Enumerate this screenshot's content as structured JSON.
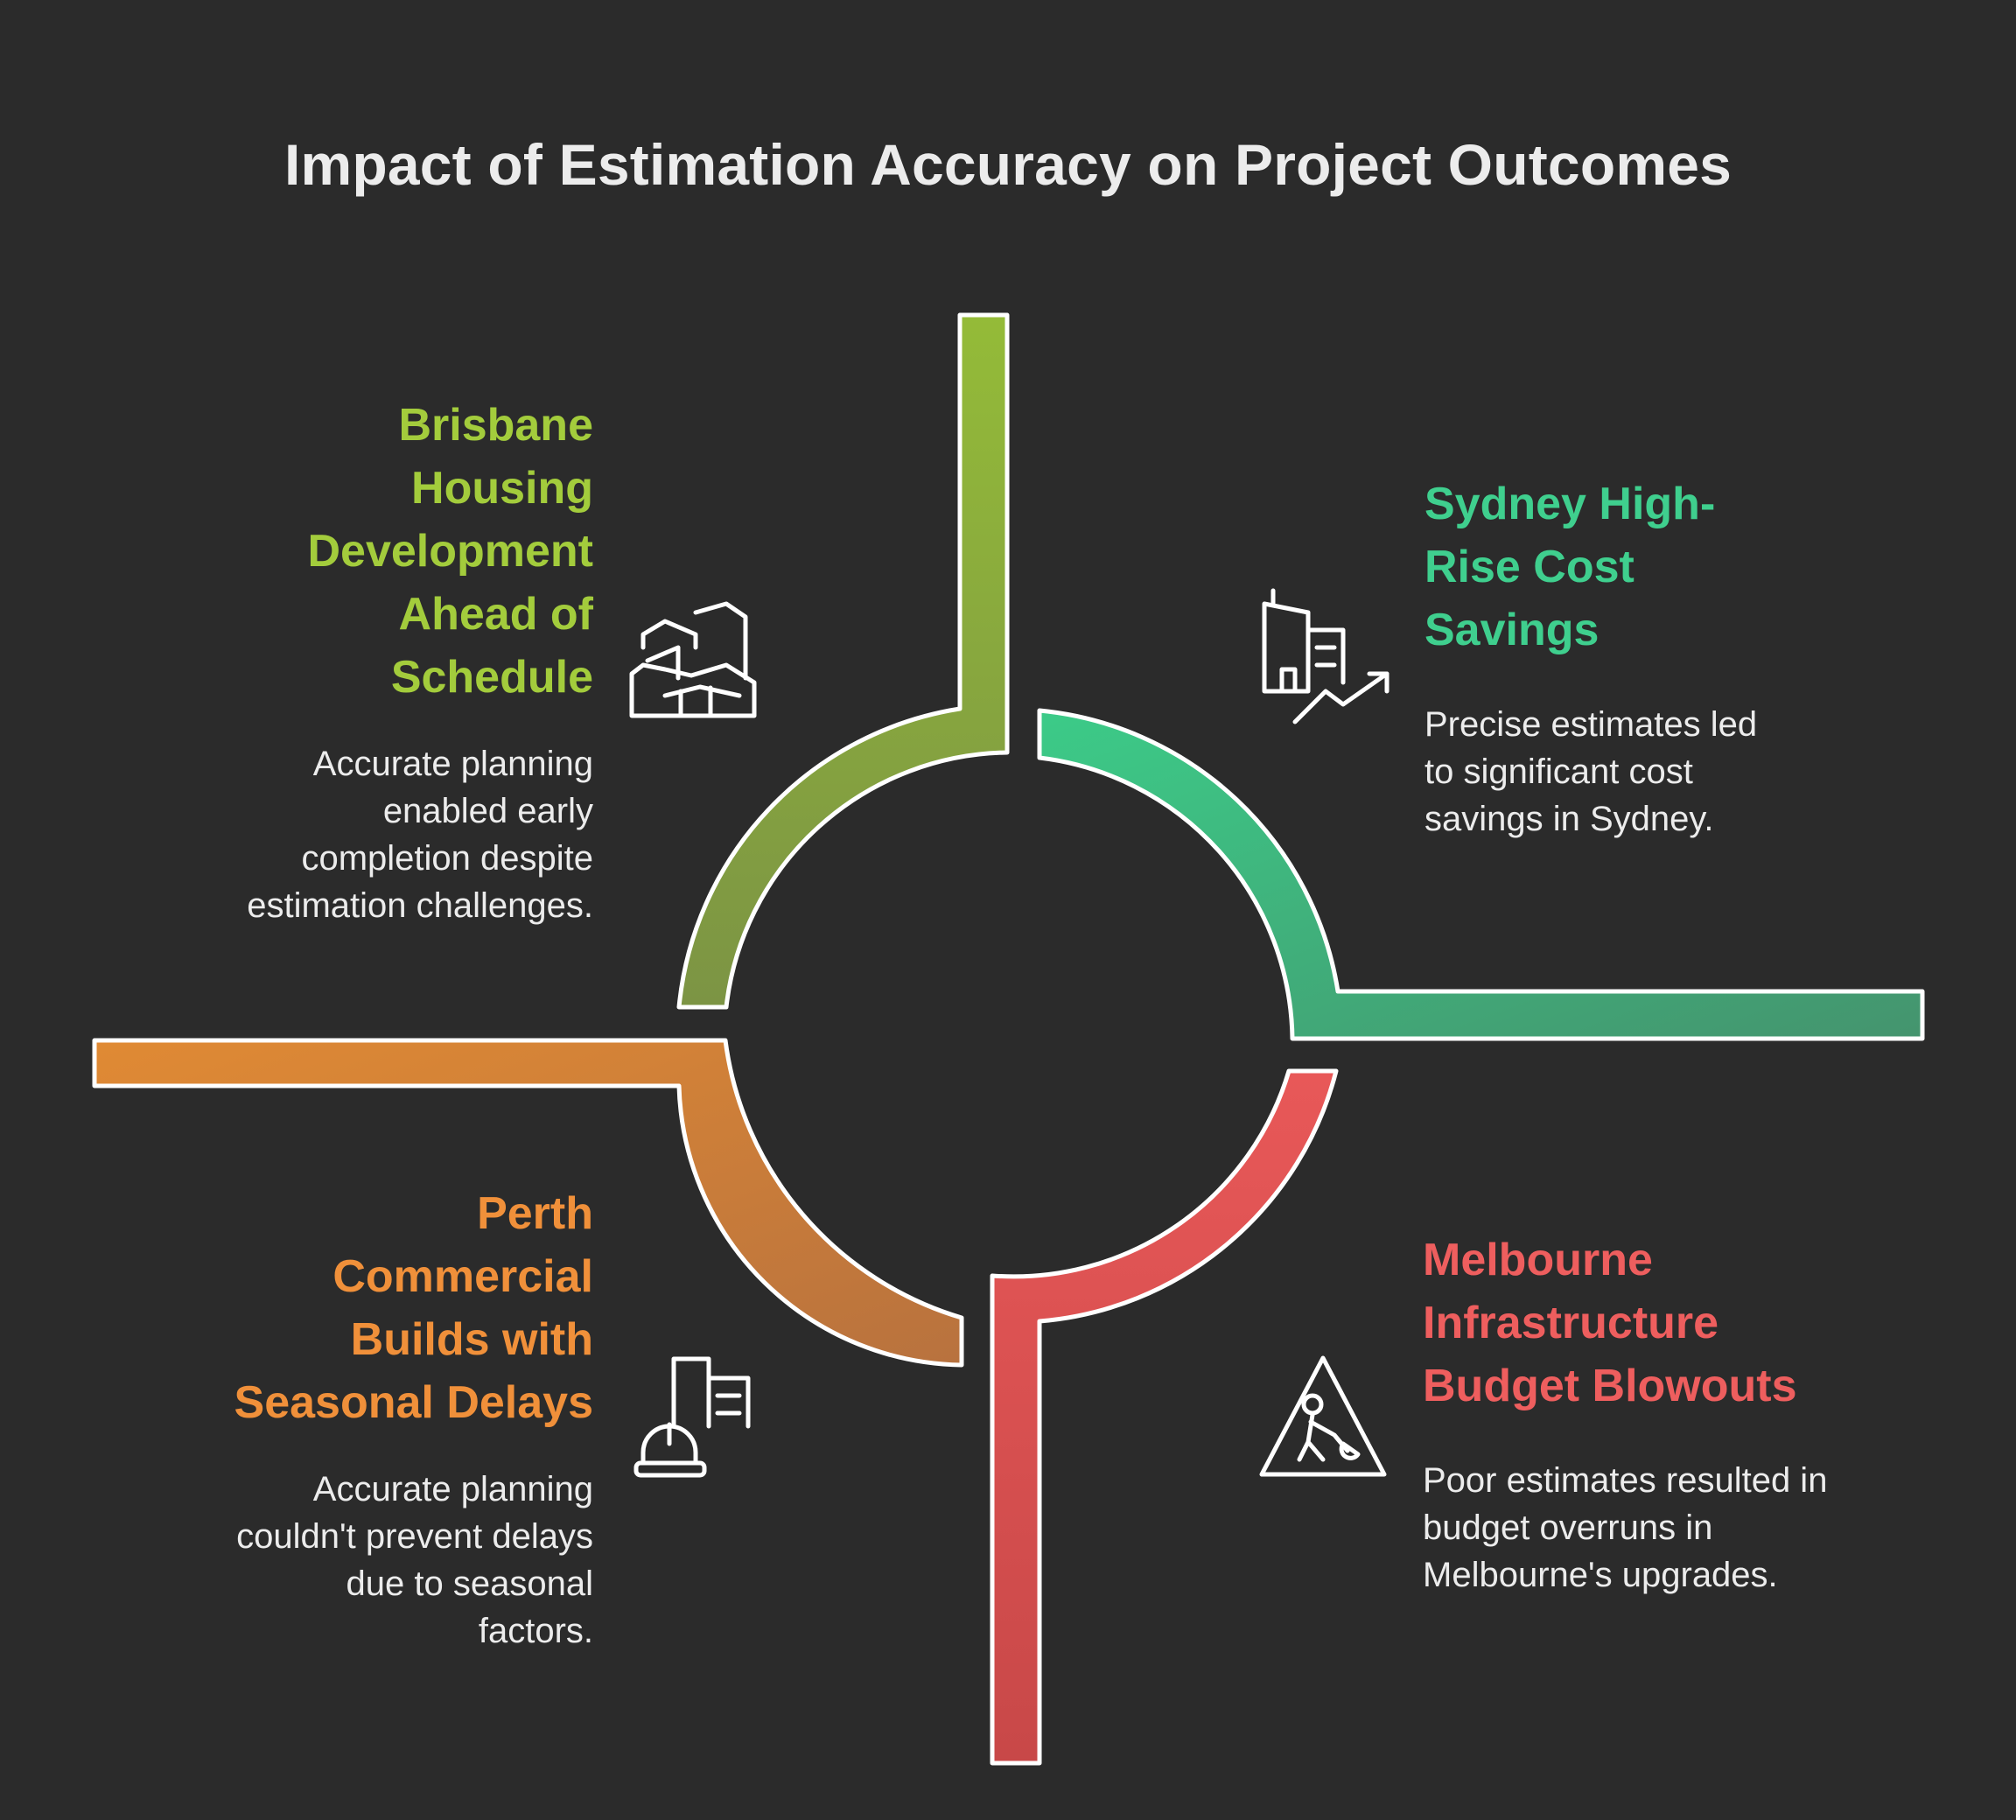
{
  "title": "Impact of Estimation Accuracy on Project Outcomes",
  "colors": {
    "background": "#2b2b2b",
    "brisbane": "#a3cc3c",
    "sydney": "#3fcf8e",
    "melbourne": "#ee5e5e",
    "perth": "#f0903a",
    "text": "#ececec"
  },
  "quadrants": {
    "brisbane": {
      "heading": "Brisbane Housing Development Ahead of Schedule",
      "heading_lines": [
        "Brisbane",
        "Housing",
        "Development",
        "Ahead of",
        "Schedule"
      ],
      "description_lines": [
        "Accurate planning",
        "enabled early",
        "completion despite",
        "estimation challenges."
      ],
      "icon": "buildings-icon"
    },
    "sydney": {
      "heading_lines": [
        "Sydney High-",
        "Rise Cost",
        "Savings"
      ],
      "description_lines": [
        "Precise estimates led",
        "to significant cost",
        "savings in Sydney."
      ],
      "icon": "building-growth-chart-icon"
    },
    "melbourne": {
      "heading_lines": [
        "Melbourne",
        "Infrastructure",
        "Budget Blowouts"
      ],
      "description_lines": [
        "Poor estimates resulted in",
        "budget overruns in",
        "Melbourne's upgrades."
      ],
      "icon": "construction-warning-icon"
    },
    "perth": {
      "heading_lines": [
        "Perth",
        "Commercial",
        "Builds with",
        "Seasonal Delays"
      ],
      "description_lines": [
        "Accurate planning",
        "couldn't prevent delays",
        "due to seasonal",
        "factors."
      ],
      "icon": "hardhat-building-icon"
    }
  }
}
